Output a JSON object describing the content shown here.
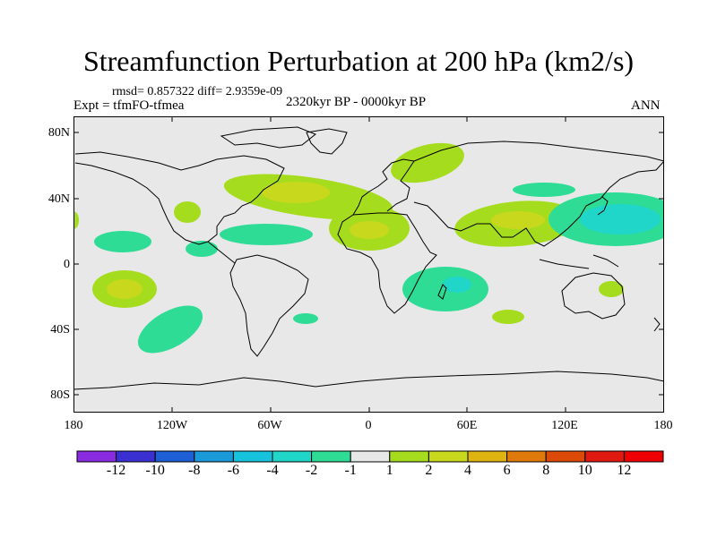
{
  "title": "Streamfunction Perturbation at 200 hPa (km2/s)",
  "stats": "rmsd= 0.857322 diff= 2.9359e-09",
  "experiment": "Expt = tfmFO-tfmea",
  "period": "2320kyr BP - 0000kyr BP",
  "season": "ANN",
  "lat_labels": [
    "80N",
    "40N",
    "0",
    "40S",
    "80S"
  ],
  "lon_labels": [
    "180",
    "120W",
    "60W",
    "0",
    "60E",
    "120E",
    "180"
  ],
  "colorbar": {
    "levels": [
      "-12",
      "-10",
      "-8",
      "-6",
      "-4",
      "-2",
      "-1",
      "1",
      "2",
      "4",
      "6",
      "8",
      "10",
      "12"
    ],
    "colors": [
      "#8a2be2",
      "#3a2fd0",
      "#1f5fd6",
      "#1a9ad8",
      "#17c2dd",
      "#1fd6c8",
      "#2edc96",
      "#e8e8e8",
      "#a6dc1e",
      "#c8d81c",
      "#e0b410",
      "#e07a0a",
      "#dc4a08",
      "#e01a10",
      "#ee0000"
    ]
  },
  "map": {
    "background_color": "#e8e8e8",
    "contour_colors": {
      "neg1": "#2edc96",
      "neg2": "#1fd6c8",
      "pos1": "#a6dc1e",
      "pos2": "#c8d81c"
    }
  }
}
